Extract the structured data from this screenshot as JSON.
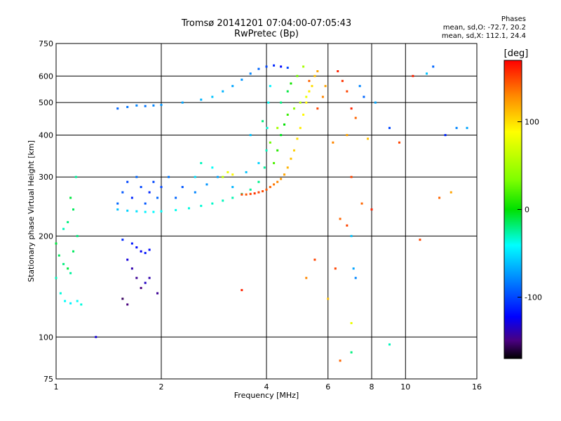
{
  "chart_data": {
    "type": "scatter",
    "title": "Tromsø 20141201 07:04:00-07:05:43",
    "subtitle": "RwPretec (Bp)",
    "xlabel": "Frequency [MHz]",
    "ylabel": "Stationary phase Virtual Height [km]",
    "x_scale": "log",
    "y_scale": "log",
    "xlim": [
      1,
      16
    ],
    "ylim": [
      75,
      750
    ],
    "x_ticks": [
      1,
      2,
      4,
      6,
      8,
      10,
      16
    ],
    "y_ticks": [
      75,
      100,
      200,
      300,
      400,
      500,
      600,
      750
    ],
    "grid": true,
    "colorbar": {
      "label": "[deg]",
      "range": [
        -170,
        170
      ],
      "ticks": [
        100,
        0,
        -100
      ],
      "colormap": "rainbow"
    },
    "stats_header": "Phases",
    "stats_lines": [
      "mean, sd,O: -72.7, 20.2",
      "mean, sd,X: 112.1, 24.4"
    ],
    "series": [
      {
        "points": [
          [
            1.5,
            240,
            -60
          ],
          [
            1.6,
            238,
            -55
          ],
          [
            1.7,
            237,
            -50
          ],
          [
            1.8,
            236,
            -45
          ],
          [
            1.9,
            236,
            -42
          ],
          [
            2.0,
            237,
            -40
          ],
          [
            2.2,
            239,
            -38
          ],
          [
            2.4,
            242,
            -36
          ],
          [
            2.6,
            246,
            -34
          ],
          [
            2.8,
            250,
            -32
          ],
          [
            3.0,
            255,
            -30
          ],
          [
            3.2,
            260,
            -28
          ],
          [
            3.4,
            267,
            -26
          ],
          [
            3.6,
            275,
            -24
          ],
          [
            3.8,
            290,
            -22
          ],
          [
            3.95,
            320,
            -25
          ],
          [
            4.0,
            360,
            -30
          ],
          [
            4.02,
            420,
            -35
          ],
          [
            4.05,
            500,
            -40
          ],
          [
            4.1,
            560,
            -45
          ],
          [
            1.5,
            250,
            -90
          ],
          [
            1.55,
            270,
            -95
          ],
          [
            1.6,
            290,
            -100
          ],
          [
            1.65,
            260,
            -110
          ],
          [
            1.7,
            300,
            -90
          ],
          [
            1.75,
            280,
            -100
          ],
          [
            1.8,
            250,
            -95
          ],
          [
            1.85,
            270,
            -110
          ],
          [
            1.9,
            290,
            -100
          ],
          [
            1.95,
            260,
            -90
          ],
          [
            2.0,
            280,
            -100
          ],
          [
            2.1,
            300,
            -85
          ],
          [
            2.2,
            260,
            -90
          ],
          [
            2.3,
            280,
            -95
          ],
          [
            2.5,
            270,
            -80
          ],
          [
            2.7,
            285,
            -75
          ],
          [
            2.9,
            300,
            -70
          ],
          [
            3.2,
            280,
            -65
          ],
          [
            3.5,
            310,
            -60
          ],
          [
            3.8,
            330,
            -55
          ],
          [
            1.5,
            480,
            -90
          ],
          [
            1.6,
            485,
            -85
          ],
          [
            1.7,
            490,
            -80
          ],
          [
            1.8,
            488,
            -85
          ],
          [
            1.9,
            490,
            -80
          ],
          [
            2.0,
            492,
            -75
          ],
          [
            2.3,
            500,
            -70
          ],
          [
            2.6,
            510,
            -65
          ],
          [
            2.8,
            520,
            -60
          ],
          [
            3.0,
            540,
            -65
          ],
          [
            3.2,
            560,
            -70
          ],
          [
            3.4,
            585,
            -75
          ],
          [
            3.6,
            610,
            -80
          ],
          [
            3.8,
            630,
            -90
          ],
          [
            4.0,
            640,
            -100
          ],
          [
            4.2,
            645,
            -110
          ],
          [
            4.4,
            640,
            -120
          ],
          [
            4.6,
            635,
            -100
          ],
          [
            1.0,
            190,
            -10
          ],
          [
            1.02,
            175,
            -15
          ],
          [
            1.05,
            165,
            -20
          ],
          [
            1.08,
            160,
            -10
          ],
          [
            1.1,
            155,
            -25
          ],
          [
            1.12,
            180,
            -15
          ],
          [
            1.15,
            200,
            -20
          ],
          [
            1.0,
            150,
            -30
          ],
          [
            1.03,
            135,
            -35
          ],
          [
            1.06,
            128,
            -40
          ],
          [
            1.1,
            126,
            -45
          ],
          [
            1.15,
            128,
            -40
          ],
          [
            1.18,
            125,
            -35
          ],
          [
            1.08,
            220,
            -20
          ],
          [
            1.12,
            240,
            -15
          ],
          [
            1.1,
            260,
            -10
          ],
          [
            1.14,
            300,
            -25
          ],
          [
            1.05,
            210,
            -30
          ],
          [
            1.7,
            185,
            -120
          ],
          [
            1.75,
            180,
            -125
          ],
          [
            1.8,
            178,
            -115
          ],
          [
            1.85,
            182,
            -120
          ],
          [
            1.6,
            170,
            -130
          ],
          [
            1.65,
            160,
            -140
          ],
          [
            1.7,
            150,
            -145
          ],
          [
            1.75,
            140,
            -150
          ],
          [
            1.8,
            145,
            -135
          ],
          [
            1.55,
            130,
            -155
          ],
          [
            1.6,
            125,
            -150
          ],
          [
            1.85,
            150,
            -140
          ],
          [
            1.95,
            135,
            -145
          ],
          [
            1.55,
            195,
            -110
          ],
          [
            1.65,
            190,
            -115
          ],
          [
            3.4,
            266,
            150
          ],
          [
            3.5,
            266,
            145
          ],
          [
            3.6,
            267,
            150
          ],
          [
            3.7,
            268,
            155
          ],
          [
            3.8,
            270,
            150
          ],
          [
            3.9,
            272,
            148
          ],
          [
            4.0,
            275,
            145
          ],
          [
            4.1,
            280,
            140
          ],
          [
            4.2,
            285,
            135
          ],
          [
            4.3,
            290,
            130
          ],
          [
            4.4,
            296,
            125
          ],
          [
            4.5,
            305,
            120
          ],
          [
            4.6,
            320,
            115
          ],
          [
            4.7,
            340,
            110
          ],
          [
            4.8,
            360,
            105
          ],
          [
            4.9,
            390,
            100
          ],
          [
            5.0,
            420,
            95
          ],
          [
            5.1,
            460,
            90
          ],
          [
            5.2,
            500,
            90
          ],
          [
            5.3,
            540,
            95
          ],
          [
            4.2,
            330,
            20
          ],
          [
            4.3,
            360,
            10
          ],
          [
            4.4,
            400,
            -5
          ],
          [
            4.5,
            430,
            0
          ],
          [
            4.6,
            460,
            15
          ],
          [
            4.8,
            480,
            40
          ],
          [
            5.0,
            500,
            60
          ],
          [
            5.2,
            520,
            80
          ],
          [
            5.4,
            560,
            100
          ],
          [
            5.5,
            600,
            110
          ],
          [
            5.6,
            620,
            120
          ],
          [
            4.4,
            500,
            -20
          ],
          [
            4.6,
            540,
            -10
          ],
          [
            4.7,
            570,
            5
          ],
          [
            4.9,
            600,
            30
          ],
          [
            5.1,
            640,
            50
          ],
          [
            5.3,
            580,
            140
          ],
          [
            5.6,
            480,
            150
          ],
          [
            5.8,
            520,
            130
          ],
          [
            5.9,
            560,
            120
          ],
          [
            3.0,
            300,
            60
          ],
          [
            3.1,
            310,
            80
          ],
          [
            3.2,
            305,
            90
          ],
          [
            2.8,
            320,
            -40
          ],
          [
            2.6,
            330,
            -30
          ],
          [
            2.5,
            300,
            -50
          ],
          [
            3.6,
            400,
            -60
          ],
          [
            3.9,
            440,
            -20
          ],
          [
            4.1,
            380,
            30
          ],
          [
            4.3,
            420,
            50
          ],
          [
            6.4,
            620,
            160
          ],
          [
            6.6,
            580,
            155
          ],
          [
            6.8,
            540,
            150
          ],
          [
            7.0,
            480,
            160
          ],
          [
            7.2,
            450,
            140
          ],
          [
            7.4,
            560,
            -80
          ],
          [
            7.6,
            520,
            -90
          ],
          [
            6.2,
            380,
            130
          ],
          [
            6.8,
            400,
            120
          ],
          [
            7.8,
            390,
            110
          ],
          [
            7.0,
            300,
            150
          ],
          [
            7.5,
            250,
            140
          ],
          [
            8.2,
            500,
            -70
          ],
          [
            9.0,
            420,
            -100
          ],
          [
            9.6,
            380,
            150
          ],
          [
            10.5,
            600,
            160
          ],
          [
            11.5,
            610,
            -60
          ],
          [
            12.0,
            640,
            -90
          ],
          [
            13.0,
            400,
            -110
          ],
          [
            14.0,
            420,
            -80
          ],
          [
            6.5,
            225,
            140
          ],
          [
            6.8,
            215,
            150
          ],
          [
            7.0,
            200,
            -60
          ],
          [
            7.1,
            160,
            -70
          ],
          [
            7.2,
            150,
            -80
          ],
          [
            6.3,
            160,
            150
          ],
          [
            6.0,
            130,
            110
          ],
          [
            7.0,
            110,
            80
          ],
          [
            7.0,
            90,
            -20
          ],
          [
            6.5,
            85,
            140
          ],
          [
            9.0,
            95,
            -30
          ],
          [
            11.0,
            195,
            150
          ],
          [
            5.5,
            170,
            150
          ],
          [
            5.2,
            150,
            130
          ],
          [
            3.4,
            138,
            160
          ],
          [
            1.3,
            100,
            -130
          ],
          [
            8.0,
            240,
            160
          ],
          [
            12.5,
            260,
            140
          ],
          [
            13.5,
            270,
            120
          ],
          [
            15.0,
            420,
            -70
          ]
        ]
      }
    ]
  }
}
